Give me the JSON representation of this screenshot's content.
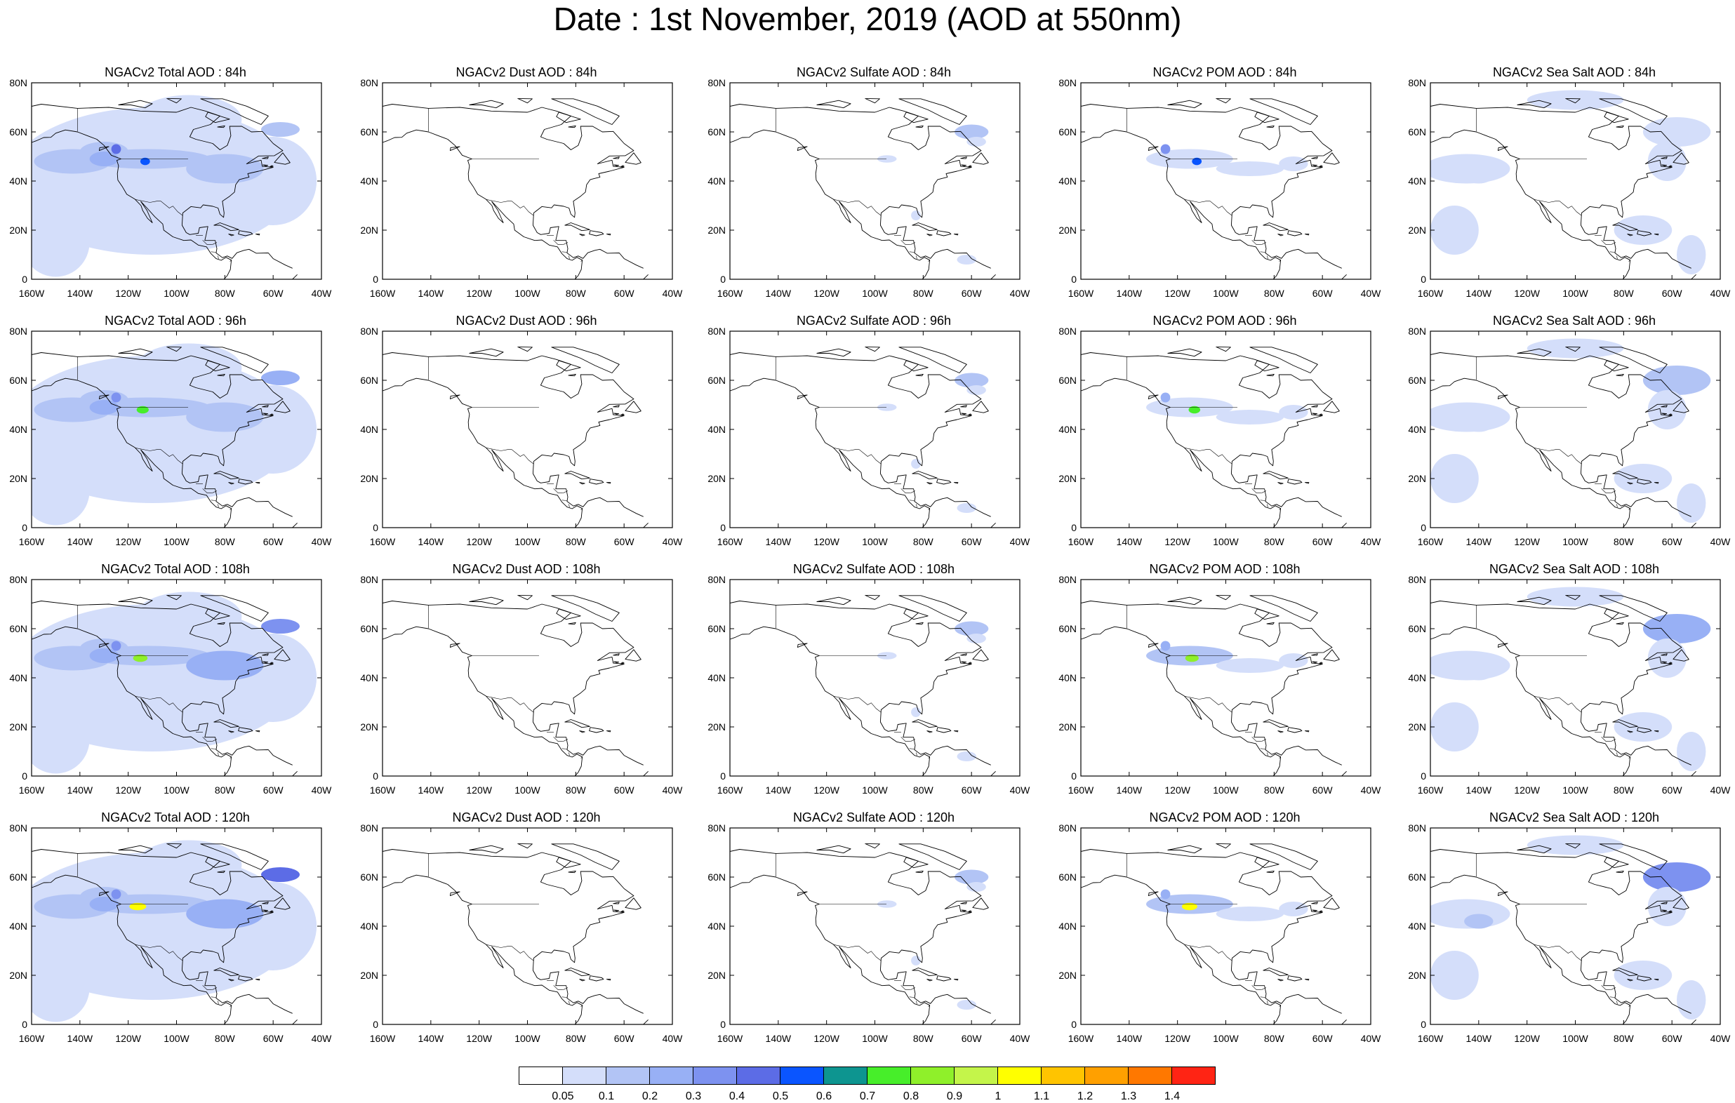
{
  "title": "Date : 1st November, 2019 (AOD at 550nm)",
  "axes": {
    "x_ticks": [
      "160W",
      "140W",
      "120W",
      "100W",
      "80W",
      "60W",
      "40W"
    ],
    "y_ticks": [
      "80N",
      "60N",
      "40N",
      "20N",
      "0"
    ],
    "lon_range": [
      -160,
      -40
    ],
    "lat_range": [
      0,
      80
    ]
  },
  "layout": {
    "rows": 4,
    "cols": 5
  },
  "panels": [
    {
      "title": "NGACv2 Total AOD : 84h",
      "species": "total",
      "hour": 84
    },
    {
      "title": "NGACv2 Dust AOD : 84h",
      "species": "dust",
      "hour": 84
    },
    {
      "title": "NGACv2 Sulfate AOD : 84h",
      "species": "sulfate",
      "hour": 84
    },
    {
      "title": "NGACv2 POM AOD : 84h",
      "species": "pom",
      "hour": 84
    },
    {
      "title": "NGACv2 Sea Salt AOD : 84h",
      "species": "seasalt",
      "hour": 84
    },
    {
      "title": "NGACv2 Total AOD : 96h",
      "species": "total",
      "hour": 96
    },
    {
      "title": "NGACv2 Dust AOD : 96h",
      "species": "dust",
      "hour": 96
    },
    {
      "title": "NGACv2 Sulfate AOD : 96h",
      "species": "sulfate",
      "hour": 96
    },
    {
      "title": "NGACv2 POM AOD : 96h",
      "species": "pom",
      "hour": 96
    },
    {
      "title": "NGACv2 Sea Salt AOD : 96h",
      "species": "seasalt",
      "hour": 96
    },
    {
      "title": "NGACv2 Total AOD : 108h",
      "species": "total",
      "hour": 108
    },
    {
      "title": "NGACv2 Dust AOD : 108h",
      "species": "dust",
      "hour": 108
    },
    {
      "title": "NGACv2 Sulfate AOD : 108h",
      "species": "sulfate",
      "hour": 108
    },
    {
      "title": "NGACv2 POM AOD : 108h",
      "species": "pom",
      "hour": 108
    },
    {
      "title": "NGACv2 Sea Salt AOD : 108h",
      "species": "seasalt",
      "hour": 108
    },
    {
      "title": "NGACv2 Total AOD : 120h",
      "species": "total",
      "hour": 120
    },
    {
      "title": "NGACv2 Dust AOD : 120h",
      "species": "dust",
      "hour": 120
    },
    {
      "title": "NGACv2 Sulfate AOD : 120h",
      "species": "sulfate",
      "hour": 120
    },
    {
      "title": "NGACv2 POM AOD : 120h",
      "species": "pom",
      "hour": 120
    },
    {
      "title": "NGACv2 Sea Salt  AOD : 120h",
      "species": "seasalt",
      "hour": 120
    }
  ],
  "colorbar": {
    "labels": [
      "0.05",
      "0.1",
      "0.2",
      "0.3",
      "0.4",
      "0.5",
      "0.6",
      "0.7",
      "0.8",
      "0.9",
      "1",
      "1.1",
      "1.2",
      "1.3",
      "1.4"
    ],
    "colors": [
      "#ffffff",
      "#d4defa",
      "#b2c4f5",
      "#98b0f5",
      "#7d92f0",
      "#5c6ce6",
      "#0a55ff",
      "#0d9590",
      "#47ee2a",
      "#8ff02a",
      "#c4f54a",
      "#ffff00",
      "#ffc400",
      "#ffa000",
      "#ff7800",
      "#ff2414"
    ]
  }
}
